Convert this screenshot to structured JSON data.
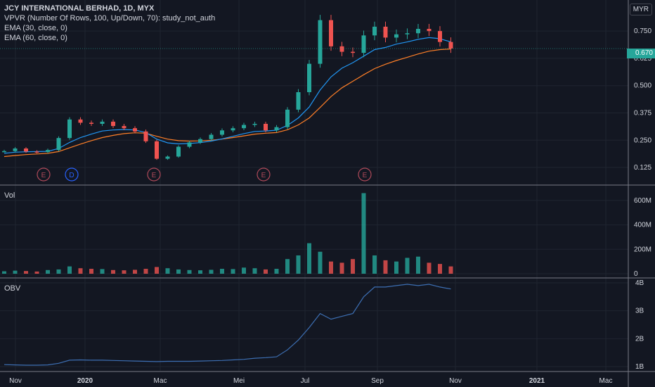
{
  "legend": {
    "title": "JCY INTERNATIONAL BERHAD, 1D, MYX",
    "vpvr": "VPVR (Number Of Rows, 100, Up/Down, 70): study_not_auth",
    "ema30": "EMA (30, close, 0)",
    "ema60": "EMA (60, close, 0)"
  },
  "panes": {
    "volume_label": "Vol",
    "obv_label": "OBV"
  },
  "currency_button": "MYR",
  "last_price": "0.670",
  "colors": {
    "background": "#131722",
    "grid": "#1f2430",
    "text": "#d1d4dc",
    "up": "#26a69a",
    "down": "#ef5350",
    "ema30": "#2196f3",
    "ema60": "#ff7f27",
    "obv": "#3d6fb3",
    "separator": "#787b86",
    "earnings": "#b04a5a",
    "dividend": "#2962ff"
  },
  "chart_data": [
    {
      "type": "candlestick",
      "x_ticks": [
        "Nov",
        "2020",
        "Mac",
        "Mei",
        "Jul",
        "Sep",
        "Nov",
        "2021",
        "Mac"
      ],
      "y_ticks": [
        "0.750",
        "0.625",
        "0.500",
        "0.375",
        "0.250",
        "0.125"
      ],
      "ylim": [
        0.08,
        0.86
      ],
      "series": [
        {
          "name": "Price (close)",
          "values": [
            0.2,
            0.212,
            0.198,
            0.196,
            0.205,
            0.26,
            0.345,
            0.33,
            0.325,
            0.335,
            0.315,
            0.305,
            0.29,
            0.245,
            0.165,
            0.175,
            0.22,
            0.24,
            0.255,
            0.275,
            0.295,
            0.305,
            0.32,
            0.325,
            0.295,
            0.31,
            0.39,
            0.47,
            0.6,
            0.8,
            0.68,
            0.655,
            0.65,
            0.73,
            0.77,
            0.72,
            0.735,
            0.74,
            0.76,
            0.75,
            0.7,
            0.67
          ]
        },
        {
          "name": "EMA (30, close, 0)",
          "values": [
            0.19,
            0.195,
            0.197,
            0.198,
            0.199,
            0.212,
            0.24,
            0.262,
            0.278,
            0.292,
            0.297,
            0.299,
            0.297,
            0.285,
            0.255,
            0.238,
            0.233,
            0.235,
            0.239,
            0.246,
            0.256,
            0.268,
            0.28,
            0.29,
            0.292,
            0.296,
            0.318,
            0.352,
            0.402,
            0.48,
            0.54,
            0.58,
            0.605,
            0.635,
            0.665,
            0.675,
            0.69,
            0.7,
            0.712,
            0.72,
            0.715,
            0.7
          ]
        },
        {
          "name": "EMA (60, close, 0)",
          "values": [
            0.175,
            0.18,
            0.184,
            0.187,
            0.19,
            0.198,
            0.215,
            0.232,
            0.248,
            0.262,
            0.272,
            0.28,
            0.284,
            0.282,
            0.268,
            0.255,
            0.248,
            0.246,
            0.247,
            0.25,
            0.255,
            0.262,
            0.27,
            0.278,
            0.282,
            0.285,
            0.298,
            0.32,
            0.352,
            0.4,
            0.45,
            0.49,
            0.52,
            0.55,
            0.578,
            0.598,
            0.615,
            0.63,
            0.645,
            0.658,
            0.665,
            0.668
          ]
        }
      ],
      "events": [
        "E",
        "D",
        "E",
        "E",
        "E"
      ],
      "last_value": 0.67
    },
    {
      "type": "bar",
      "title": "Vol",
      "y_ticks": [
        "600M",
        "400M",
        "200M",
        "0"
      ],
      "ylim": [
        0,
        680
      ],
      "values": [
        20,
        25,
        22,
        18,
        30,
        35,
        60,
        45,
        40,
        38,
        30,
        28,
        32,
        40,
        55,
        45,
        35,
        30,
        28,
        32,
        40,
        38,
        50,
        45,
        35,
        40,
        120,
        150,
        250,
        180,
        100,
        90,
        120,
        660,
        150,
        110,
        100,
        130,
        140,
        90,
        80,
        60
      ]
    },
    {
      "type": "line",
      "title": "OBV",
      "y_ticks": [
        "4B",
        "3B",
        "2B",
        "1B"
      ],
      "ylim": [
        0.95,
        4.1
      ],
      "series": [
        {
          "name": "OBV",
          "values": [
            1.07,
            1.06,
            1.05,
            1.05,
            1.06,
            1.12,
            1.23,
            1.24,
            1.23,
            1.23,
            1.22,
            1.21,
            1.2,
            1.19,
            1.18,
            1.19,
            1.19,
            1.19,
            1.2,
            1.21,
            1.22,
            1.24,
            1.26,
            1.3,
            1.32,
            1.35,
            1.6,
            1.95,
            2.4,
            2.9,
            2.7,
            2.8,
            2.9,
            3.5,
            3.85,
            3.85,
            3.9,
            3.95,
            3.9,
            3.95,
            3.85,
            3.78
          ]
        }
      ]
    }
  ]
}
